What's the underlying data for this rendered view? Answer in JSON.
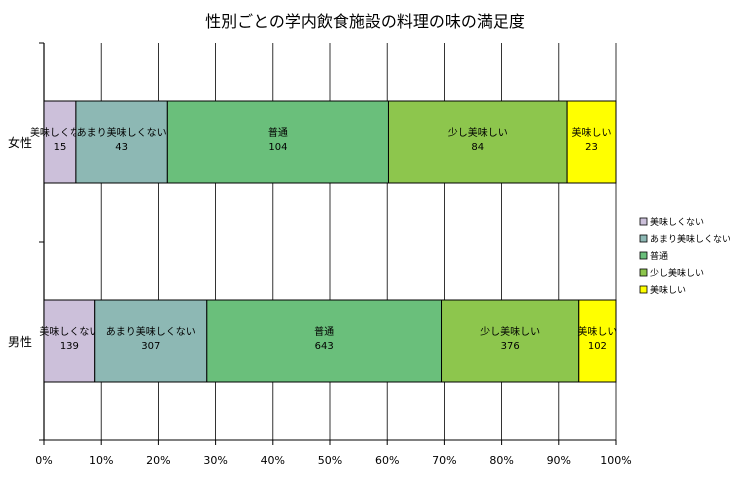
{
  "chart_data": {
    "type": "bar",
    "orientation": "horizontal",
    "stacking": "percent",
    "title": "性別ごとの学内飲食施設の料理の味の満足度",
    "categories": [
      "女性",
      "男性"
    ],
    "series": [
      {
        "name": "美味しくない",
        "values": [
          15,
          139
        ],
        "color": "#ccc0da"
      },
      {
        "name": "あまり美味しくない",
        "values": [
          43,
          307
        ],
        "color": "#8db8b4"
      },
      {
        "name": "普通",
        "values": [
          104,
          643
        ],
        "color": "#6abf7b"
      },
      {
        "name": "少し美味しい",
        "values": [
          84,
          376
        ],
        "color": "#8dc64d"
      },
      {
        "name": "美味しい",
        "values": [
          23,
          102
        ],
        "color": "#ffff00"
      }
    ],
    "x_ticks": [
      "0%",
      "10%",
      "20%",
      "30%",
      "40%",
      "50%",
      "60%",
      "70%",
      "80%",
      "90%",
      "100%"
    ],
    "xlim": [
      0,
      100
    ],
    "xlabel": "",
    "ylabel": "",
    "grid": "vertical",
    "legend_position": "right"
  }
}
